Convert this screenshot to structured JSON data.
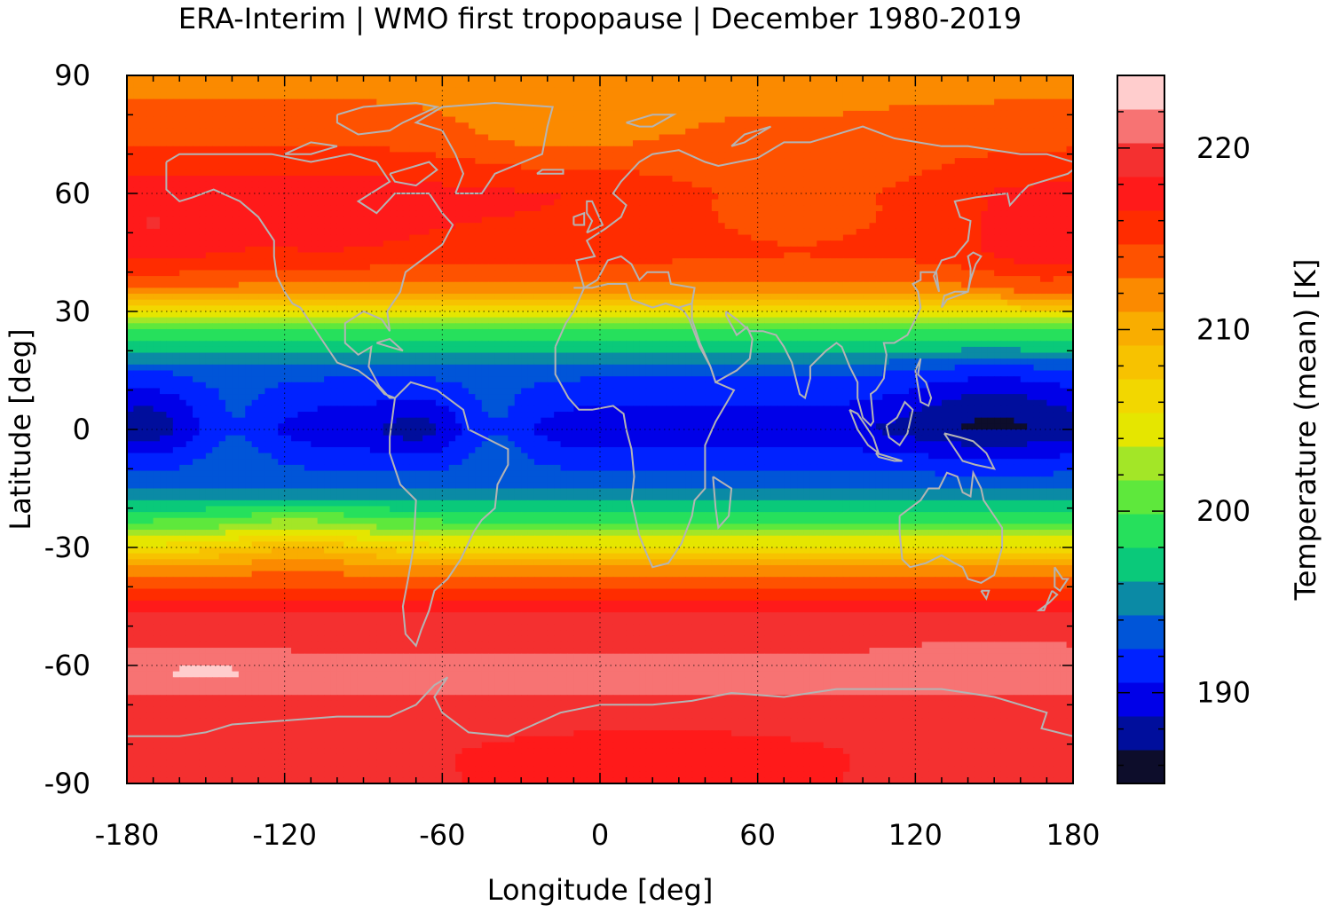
{
  "chart_data": {
    "type": "heatmap",
    "title": "ERA-Interim | WMO first tropopause | December 1980-2019",
    "xlabel": "Longitude [deg]",
    "ylabel": "Latitude [deg]",
    "xlim": [
      -180,
      180
    ],
    "ylim": [
      -90,
      90
    ],
    "x_ticks": [
      "-180",
      "-120",
      "-60",
      "0",
      "60",
      "120",
      "180"
    ],
    "y_ticks": [
      "-90",
      "-60",
      "-30",
      "0",
      "30",
      "60",
      "90"
    ],
    "grid": true,
    "colorbar": {
      "label": "Temperature (mean) [K]",
      "range": [
        185,
        224
      ],
      "ticks": [
        "190",
        "200",
        "210",
        "220"
      ],
      "colors": [
        "#0d0d2b",
        "#000e9c",
        "#0000e8",
        "#0022ff",
        "#0055d8",
        "#0b8aa5",
        "#0ac97a",
        "#26e05c",
        "#5ee83c",
        "#a3e627",
        "#e5e600",
        "#f2d700",
        "#f7c200",
        "#f9ad00",
        "#fb8a00",
        "#fe5200",
        "#ff2c00",
        "#ff1a1a",
        "#f43030",
        "#f77373",
        "#ffcdcd"
      ]
    },
    "z_by_latitude": [
      {
        "lat": -90,
        "K": 218.5
      },
      {
        "lat": -80,
        "K": 219
      },
      {
        "lat": -70,
        "K": 220
      },
      {
        "lat": -62,
        "K": 221
      },
      {
        "lat": -55,
        "K": 220
      },
      {
        "lat": -45,
        "K": 218
      },
      {
        "lat": -35,
        "K": 211
      },
      {
        "lat": -25,
        "K": 201
      },
      {
        "lat": -15,
        "K": 194
      },
      {
        "lat": 0,
        "K": 189
      },
      {
        "lat": 15,
        "K": 193
      },
      {
        "lat": 25,
        "K": 200
      },
      {
        "lat": 30,
        "K": 206
      },
      {
        "lat": 35,
        "K": 212
      },
      {
        "lat": 45,
        "K": 216
      },
      {
        "lat": 60,
        "K": 217
      },
      {
        "lat": 75,
        "K": 214
      },
      {
        "lat": 90,
        "K": 212
      }
    ]
  }
}
